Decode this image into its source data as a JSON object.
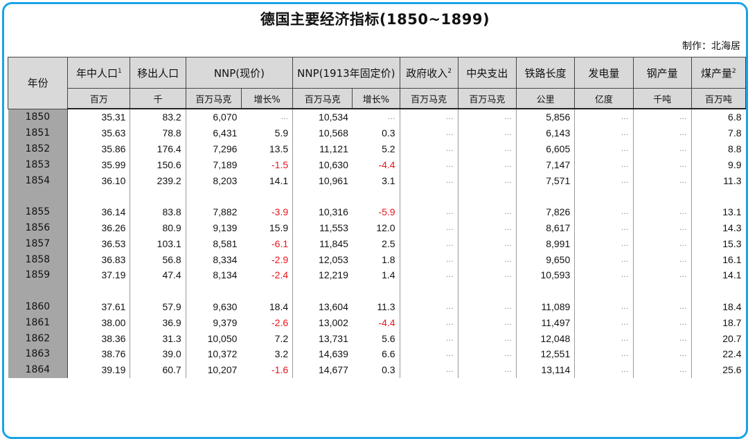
{
  "title": "德国主要经济指标(1850~1899)",
  "credit": "制作：北海居",
  "header": {
    "year": "年份",
    "pop": "年中人口",
    "pop_sup": "1",
    "emigration": "移出人口",
    "nnp_current": "NNP(现价)",
    "nnp_const": "NNP(1913年固定价)",
    "gov_rev": "政府收入",
    "gov_rev_sup": "2",
    "central_exp": "中央支出",
    "rail": "铁路长度",
    "power": "发电量",
    "steel": "钢产量",
    "coal": "煤产量",
    "coal_sup": "2"
  },
  "units": [
    "百万",
    "千",
    "百万马克",
    "增长%",
    "百万马克",
    "增长%",
    "百万马克",
    "百万马克",
    "公里",
    "亿度",
    "千吨",
    "百万吨"
  ],
  "accent_colors": {
    "border": "#1aa3e8",
    "negative": "#e8141c",
    "header_bg": "#d9d9d9",
    "year_bg": "#a6a6a6"
  },
  "rows": [
    {
      "year": "1850",
      "pop": "35.31",
      "emig": "83.2",
      "n_cur": "6,070",
      "g_cur": "…",
      "n_con": "10,534",
      "g_con": "…",
      "gov": "…",
      "cen": "…",
      "rail": "5,856",
      "elec": "…",
      "steel": "…",
      "coal": "6.8"
    },
    {
      "year": "1851",
      "pop": "35.63",
      "emig": "78.8",
      "n_cur": "6,431",
      "g_cur": "5.9",
      "n_con": "10,568",
      "g_con": "0.3",
      "gov": "…",
      "cen": "…",
      "rail": "6,143",
      "elec": "…",
      "steel": "…",
      "coal": "7.8"
    },
    {
      "year": "1852",
      "pop": "35.86",
      "emig": "176.4",
      "n_cur": "7,296",
      "g_cur": "13.5",
      "n_con": "11,121",
      "g_con": "5.2",
      "gov": "…",
      "cen": "…",
      "rail": "6,605",
      "elec": "…",
      "steel": "…",
      "coal": "8.8"
    },
    {
      "year": "1853",
      "pop": "35.99",
      "emig": "150.6",
      "n_cur": "7,189",
      "g_cur": "-1.5",
      "n_con": "10,630",
      "g_con": "-4.4",
      "gov": "…",
      "cen": "…",
      "rail": "7,147",
      "elec": "…",
      "steel": "…",
      "coal": "9.9"
    },
    {
      "year": "1854",
      "pop": "36.10",
      "emig": "239.2",
      "n_cur": "8,203",
      "g_cur": "14.1",
      "n_con": "10,961",
      "g_con": "3.1",
      "gov": "…",
      "cen": "…",
      "rail": "7,571",
      "elec": "…",
      "steel": "…",
      "coal": "11.3"
    },
    {
      "year": "1855",
      "pop": "36.14",
      "emig": "83.8",
      "n_cur": "7,882",
      "g_cur": "-3.9",
      "n_con": "10,316",
      "g_con": "-5.9",
      "gov": "…",
      "cen": "…",
      "rail": "7,826",
      "elec": "…",
      "steel": "…",
      "coal": "13.1"
    },
    {
      "year": "1856",
      "pop": "36.26",
      "emig": "80.9",
      "n_cur": "9,139",
      "g_cur": "15.9",
      "n_con": "11,553",
      "g_con": "12.0",
      "gov": "…",
      "cen": "…",
      "rail": "8,617",
      "elec": "…",
      "steel": "…",
      "coal": "14.3"
    },
    {
      "year": "1857",
      "pop": "36.53",
      "emig": "103.1",
      "n_cur": "8,581",
      "g_cur": "-6.1",
      "n_con": "11,845",
      "g_con": "2.5",
      "gov": "…",
      "cen": "…",
      "rail": "8,991",
      "elec": "…",
      "steel": "…",
      "coal": "15.3"
    },
    {
      "year": "1858",
      "pop": "36.83",
      "emig": "56.8",
      "n_cur": "8,334",
      "g_cur": "-2.9",
      "n_con": "12,053",
      "g_con": "1.8",
      "gov": "…",
      "cen": "…",
      "rail": "9,650",
      "elec": "…",
      "steel": "…",
      "coal": "16.1"
    },
    {
      "year": "1859",
      "pop": "37.19",
      "emig": "47.4",
      "n_cur": "8,134",
      "g_cur": "-2.4",
      "n_con": "12,219",
      "g_con": "1.4",
      "gov": "…",
      "cen": "…",
      "rail": "10,593",
      "elec": "…",
      "steel": "…",
      "coal": "14.1"
    },
    {
      "year": "1860",
      "pop": "37.61",
      "emig": "57.9",
      "n_cur": "9,630",
      "g_cur": "18.4",
      "n_con": "13,604",
      "g_con": "11.3",
      "gov": "…",
      "cen": "…",
      "rail": "11,089",
      "elec": "…",
      "steel": "…",
      "coal": "18.4"
    },
    {
      "year": "1861",
      "pop": "38.00",
      "emig": "36.9",
      "n_cur": "9,379",
      "g_cur": "-2.6",
      "n_con": "13,002",
      "g_con": "-4.4",
      "gov": "…",
      "cen": "…",
      "rail": "11,497",
      "elec": "…",
      "steel": "…",
      "coal": "18.7"
    },
    {
      "year": "1862",
      "pop": "38.36",
      "emig": "31.3",
      "n_cur": "10,050",
      "g_cur": "7.2",
      "n_con": "13,731",
      "g_con": "5.6",
      "gov": "…",
      "cen": "…",
      "rail": "12,048",
      "elec": "…",
      "steel": "…",
      "coal": "20.7"
    },
    {
      "year": "1863",
      "pop": "38.76",
      "emig": "39.0",
      "n_cur": "10,372",
      "g_cur": "3.2",
      "n_con": "14,639",
      "g_con": "6.6",
      "gov": "…",
      "cen": "…",
      "rail": "12,551",
      "elec": "…",
      "steel": "…",
      "coal": "22.4"
    },
    {
      "year": "1864",
      "pop": "39.19",
      "emig": "60.7",
      "n_cur": "10,207",
      "g_cur": "-1.6",
      "n_con": "14,677",
      "g_con": "0.3",
      "gov": "…",
      "cen": "…",
      "rail": "13,114",
      "elec": "…",
      "steel": "…",
      "coal": "25.6"
    }
  ]
}
